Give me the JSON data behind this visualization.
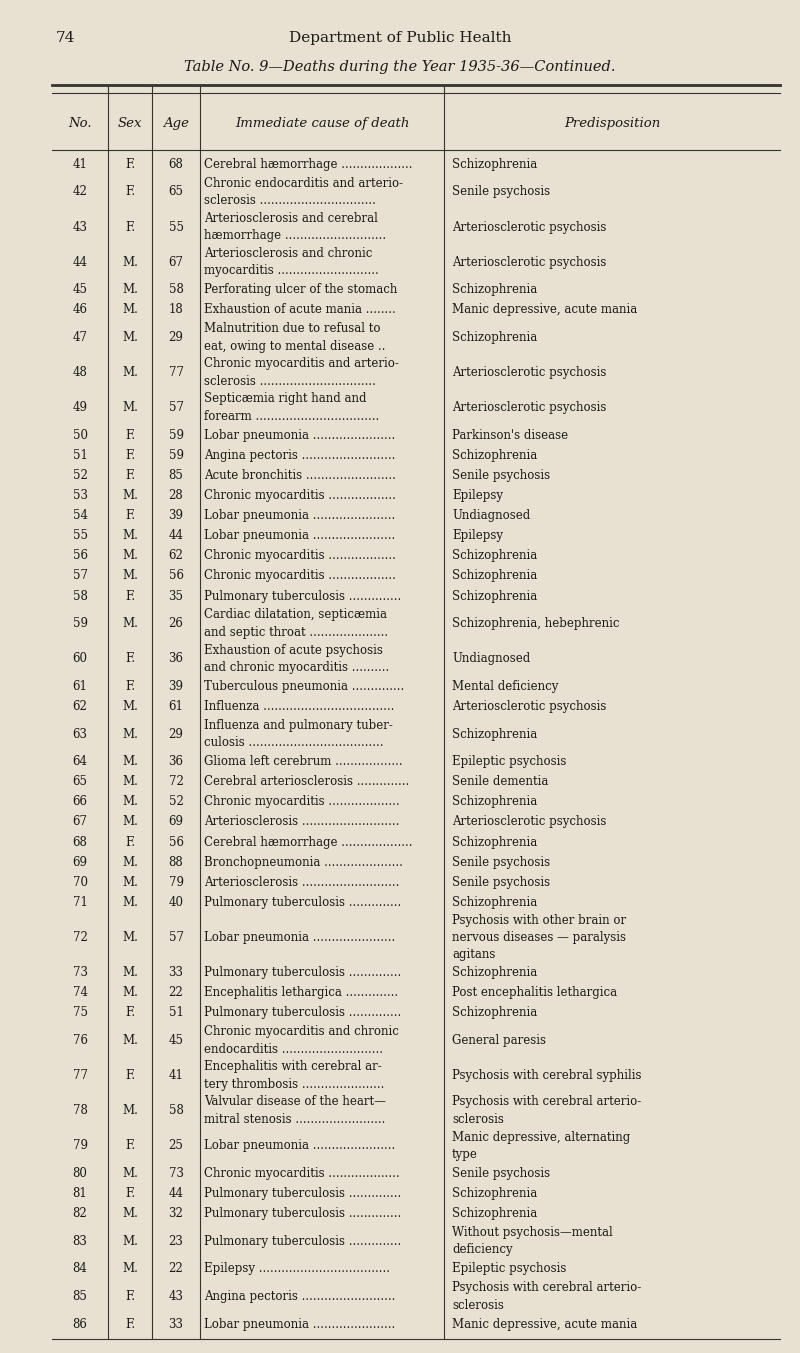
{
  "page_number": "74",
  "header_left": "Department of Public Health",
  "title": "Table No. 9—Deaths during the Year 1935-36—Continued.",
  "col_headers": [
    "No.",
    "Sex",
    "Age",
    "Immediate cause of death",
    "Predisposition"
  ],
  "bg_color": "#e8e0d0",
  "text_color": "#1a1a1a",
  "rows": [
    [
      "41",
      "F.",
      "68",
      "Cerebral hæmorrhage ...................",
      "Schizophrenia"
    ],
    [
      "42",
      "F.",
      "65",
      "Chronic endocarditis and arterio-\n    sclerosis ...............................",
      "Senile psychosis"
    ],
    [
      "43",
      "F.",
      "55",
      "Arteriosclerosis and cerebral\n    hæmorrhage ...........................",
      "Arteriosclerotic psychosis"
    ],
    [
      "44",
      "M.",
      "67",
      "Arteriosclerosis and chronic\n    myocarditis ...........................",
      "Arteriosclerotic psychosis"
    ],
    [
      "45",
      "M.",
      "58",
      "Perforating ulcer of the stomach",
      "Schizophrenia"
    ],
    [
      "46",
      "M.",
      "18",
      "Exhaustion of acute mania ........",
      "Manic depressive, acute mania"
    ],
    [
      "47",
      "M.",
      "29",
      "Malnutrition due to refusal to\n    eat, owing to mental disease ..",
      "Schizophrenia"
    ],
    [
      "48",
      "M.",
      "77",
      "Chronic myocarditis and arterio-\n    sclerosis ...............................",
      "Arteriosclerotic psychosis"
    ],
    [
      "49",
      "M.",
      "57",
      "Septicæmia right hand and\n    forearm .................................",
      "Arteriosclerotic psychosis"
    ],
    [
      "50",
      "F.",
      "59",
      "Lobar pneumonia ......................",
      "Parkinson's disease"
    ],
    [
      "51",
      "F.",
      "59",
      "Angina pectoris .........................",
      "Schizophrenia"
    ],
    [
      "52",
      "F.",
      "85",
      "Acute bronchitis ........................",
      "Senile psychosis"
    ],
    [
      "53",
      "M.",
      "28",
      "Chronic myocarditis ..................",
      "Epilepsy"
    ],
    [
      "54",
      "F.",
      "39",
      "Lobar pneumonia ......................",
      "Undiagnosed"
    ],
    [
      "55",
      "M.",
      "44",
      "Lobar pneumonia ......................",
      "Epilepsy"
    ],
    [
      "56",
      "M.",
      "62",
      "Chronic myocarditis ..................",
      "Schizophrenia"
    ],
    [
      "57",
      "M.",
      "56",
      "Chronic myocarditis ..................",
      "Schizophrenia"
    ],
    [
      "58",
      "F.",
      "35",
      "Pulmonary tuberculosis ..............",
      "Schizophrenia"
    ],
    [
      "59",
      "M.",
      "26",
      "Cardiac dilatation, septicæmia\n    and septic throat .....................",
      "Schizophrenia, hebephrenic"
    ],
    [
      "60",
      "F.",
      "36",
      "Exhaustion of acute psychosis\n    and chronic myocarditis ..........",
      "Undiagnosed"
    ],
    [
      "61",
      "F.",
      "39",
      "Tuberculous pneumonia ..............",
      "Mental deficiency"
    ],
    [
      "62",
      "M.",
      "61",
      "Influenza ...................................",
      "Arteriosclerotic psychosis"
    ],
    [
      "63",
      "M.",
      "29",
      "Influenza and pulmonary tuber-\n    culosis ....................................",
      "Schizophrenia"
    ],
    [
      "64",
      "M.",
      "36",
      "Glioma left cerebrum ..................",
      "Epileptic psychosis"
    ],
    [
      "65",
      "M.",
      "72",
      "Cerebral arteriosclerosis ..............",
      "Senile dementia"
    ],
    [
      "66",
      "M.",
      "52",
      "Chronic myocarditis ...................",
      "Schizophrenia"
    ],
    [
      "67",
      "M.",
      "69",
      "Arteriosclerosis ..........................",
      "Arteriosclerotic psychosis"
    ],
    [
      "68",
      "F.",
      "56",
      "Cerebral hæmorrhage ...................",
      "Schizophrenia"
    ],
    [
      "69",
      "M.",
      "88",
      "Bronchopneumonia .....................",
      "Senile psychosis"
    ],
    [
      "70",
      "M.",
      "79",
      "Arteriosclerosis ..........................",
      "Senile psychosis"
    ],
    [
      "71",
      "M.",
      "40",
      "Pulmonary tuberculosis ..............",
      "Schizophrenia"
    ],
    [
      "72",
      "M.",
      "57",
      "Lobar pneumonia ......................",
      "Psychosis with other brain or\nnervous diseases — paralysis\nagitans"
    ],
    [
      "73",
      "M.",
      "33",
      "Pulmonary tuberculosis ..............",
      "Schizophrenia"
    ],
    [
      "74",
      "M.",
      "22",
      "Encephalitis lethargica ..............",
      "Post encephalitis lethargica"
    ],
    [
      "75",
      "F.",
      "51",
      "Pulmonary tuberculosis ..............",
      "Schizophrenia"
    ],
    [
      "76",
      "M.",
      "45",
      "Chronic myocarditis and chronic\n    endocarditis ...........................",
      "General paresis"
    ],
    [
      "77",
      "F.",
      "41",
      "Encephalitis with cerebral ar-\n    tery thrombosis ......................",
      "Psychosis with cerebral syphilis"
    ],
    [
      "78",
      "M.",
      "58",
      "Valvular disease of the heart—\n    mitral stenosis ........................",
      "Psychosis with cerebral arterio-\nsclerosis"
    ],
    [
      "79",
      "F.",
      "25",
      "Lobar pneumonia ......................",
      "Manic depressive, alternating\ntype"
    ],
    [
      "80",
      "M.",
      "73",
      "Chronic myocarditis ...................",
      "Senile psychosis"
    ],
    [
      "81",
      "F.",
      "44",
      "Pulmonary tuberculosis ..............",
      "Schizophrenia"
    ],
    [
      "82",
      "M.",
      "32",
      "Pulmonary tuberculosis ..............",
      "Schizophrenia"
    ],
    [
      "83",
      "M.",
      "23",
      "Pulmonary tuberculosis ..............",
      "Without psychosis—mental\ndeficiency"
    ],
    [
      "84",
      "M.",
      "22",
      "Epilepsy ...................................",
      "Epileptic psychosis"
    ],
    [
      "85",
      "F.",
      "43",
      "Angina pectoris .........................",
      "Psychosis with cerebral arterio-\nsclerosis"
    ],
    [
      "86",
      "F.",
      "33",
      "Lobar pneumonia ......................",
      "Manic depressive, acute mania"
    ]
  ]
}
